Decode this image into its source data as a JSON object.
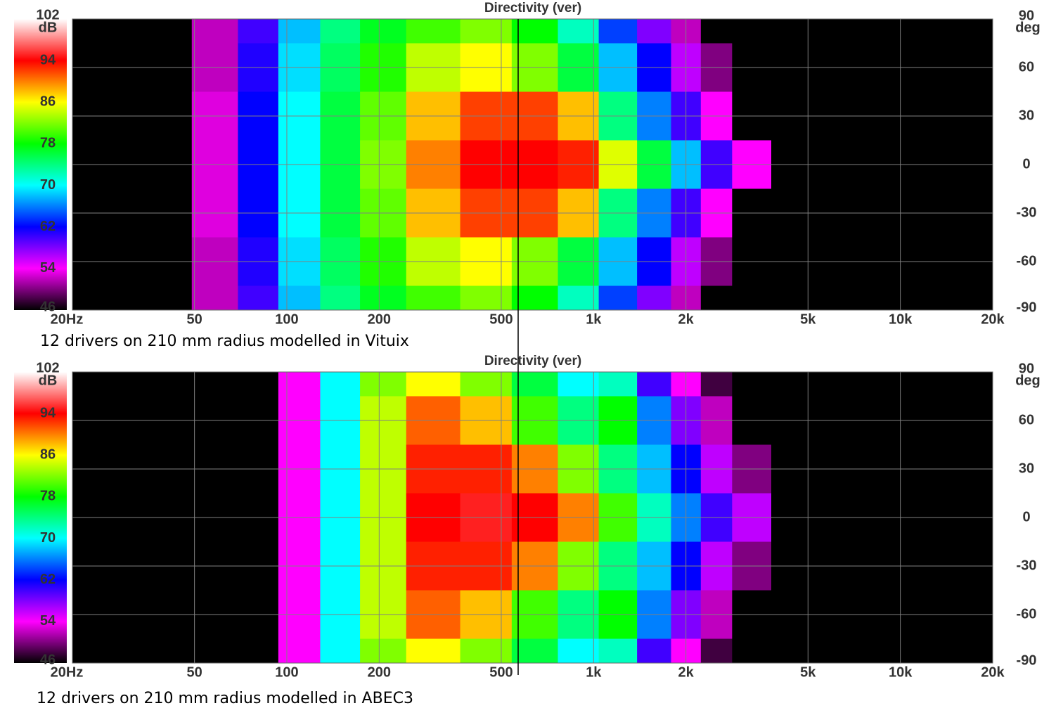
{
  "chart_data": [
    {
      "type": "heatmap",
      "title": "Directivity (ver)",
      "caption": "12 drivers on 210 mm radius modelled in Vituix",
      "x": [
        25,
        40,
        60,
        80,
        110,
        150,
        200,
        300,
        450,
        650,
        900,
        1200,
        1600,
        2000,
        2500,
        3200,
        4500,
        8000,
        15000
      ],
      "y": [
        90,
        60,
        30,
        0,
        -30,
        -60,
        -90
      ],
      "values": [
        [
          40,
          40,
          52,
          60,
          68,
          74,
          77,
          80,
          82,
          78,
          72,
          64,
          58,
          52,
          40,
          40,
          40,
          40,
          40
        ],
        [
          40,
          40,
          52,
          61,
          69,
          75,
          79,
          84,
          86,
          82,
          76,
          68,
          62,
          56,
          50,
          40,
          40,
          40,
          40
        ],
        [
          40,
          40,
          53,
          62,
          70,
          76,
          81,
          88,
          92,
          92,
          88,
          74,
          66,
          60,
          54,
          40,
          40,
          40,
          40
        ],
        [
          40,
          40,
          53,
          62,
          70,
          76,
          82,
          90,
          94,
          94,
          93,
          85,
          76,
          68,
          60,
          54,
          40,
          40,
          40
        ],
        [
          40,
          40,
          53,
          62,
          70,
          76,
          81,
          88,
          92,
          92,
          88,
          74,
          66,
          60,
          54,
          40,
          40,
          40,
          40
        ],
        [
          40,
          40,
          52,
          61,
          69,
          75,
          79,
          84,
          86,
          82,
          76,
          68,
          62,
          56,
          50,
          40,
          40,
          40,
          40
        ],
        [
          40,
          40,
          52,
          60,
          68,
          74,
          77,
          80,
          82,
          78,
          72,
          64,
          58,
          52,
          40,
          40,
          40,
          40,
          40
        ]
      ],
      "xlim": [
        20,
        20000
      ],
      "log_x": true,
      "xticks": [
        {
          "value": 20,
          "label": "20Hz"
        },
        50,
        100,
        200,
        500,
        {
          "value": 1000,
          "label": "1k"
        },
        {
          "value": 2000,
          "label": "2k"
        },
        {
          "value": 5000,
          "label": "5k"
        },
        {
          "value": 10000,
          "label": "10k"
        },
        {
          "value": 20000,
          "label": "20k"
        }
      ],
      "ylim": [
        -90,
        90
      ],
      "yticks": [
        90,
        60,
        30,
        0,
        -30,
        -60,
        -90
      ],
      "ylabel": "deg",
      "clim": [
        46,
        102
      ],
      "cticks": [
        102,
        94,
        86,
        78,
        70,
        62,
        54,
        46
      ],
      "clabel": "dB",
      "colors": [
        "#000000",
        "#ff00ff",
        "#0000ff",
        "#00ffff",
        "#00ff00",
        "#ffff00",
        "#ff0000",
        "#ffffff"
      ],
      "grid": true
    },
    {
      "type": "heatmap",
      "title": "Directivity (ver)",
      "caption": "12 drivers on 210 mm radius modelled in ABEC3",
      "x": [
        25,
        40,
        60,
        80,
        110,
        150,
        200,
        300,
        450,
        650,
        900,
        1200,
        1600,
        2000,
        2500,
        3200,
        4500,
        8000,
        15000
      ],
      "y": [
        90,
        60,
        30,
        0,
        -30,
        -60,
        -90
      ],
      "values": [
        [
          40,
          40,
          40,
          40,
          54,
          70,
          82,
          86,
          82,
          76,
          70,
          72,
          60,
          54,
          48,
          40,
          40,
          40,
          40
        ],
        [
          40,
          40,
          40,
          40,
          54,
          70,
          84,
          91,
          88,
          80,
          74,
          78,
          66,
          58,
          52,
          40,
          40,
          40,
          40
        ],
        [
          40,
          40,
          40,
          40,
          54,
          70,
          84,
          93,
          93,
          90,
          82,
          74,
          68,
          62,
          56,
          50,
          40,
          40,
          40
        ],
        [
          40,
          40,
          40,
          40,
          54,
          70,
          84,
          94,
          95,
          94,
          90,
          80,
          72,
          66,
          60,
          56,
          40,
          40,
          40
        ],
        [
          40,
          40,
          40,
          40,
          54,
          70,
          84,
          93,
          93,
          90,
          82,
          74,
          68,
          62,
          56,
          50,
          40,
          40,
          40
        ],
        [
          40,
          40,
          40,
          40,
          54,
          70,
          84,
          91,
          88,
          80,
          74,
          78,
          66,
          58,
          52,
          40,
          40,
          40,
          40
        ],
        [
          40,
          40,
          40,
          40,
          54,
          70,
          82,
          86,
          82,
          76,
          70,
          72,
          60,
          54,
          48,
          40,
          40,
          40,
          40
        ]
      ],
      "xlim": [
        20,
        20000
      ],
      "log_x": true,
      "xticks": [
        {
          "value": 20,
          "label": "20Hz"
        },
        50,
        100,
        200,
        500,
        {
          "value": 1000,
          "label": "1k"
        },
        {
          "value": 2000,
          "label": "2k"
        },
        {
          "value": 5000,
          "label": "5k"
        },
        {
          "value": 10000,
          "label": "10k"
        },
        {
          "value": 20000,
          "label": "20k"
        }
      ],
      "ylim": [
        -90,
        90
      ],
      "yticks": [
        90,
        60,
        30,
        0,
        -30,
        -60,
        -90
      ],
      "ylabel": "deg",
      "clim": [
        46,
        102
      ],
      "cticks": [
        102,
        94,
        86,
        78,
        70,
        62,
        54,
        46
      ],
      "clabel": "dB",
      "colors": [
        "#000000",
        "#ff00ff",
        "#0000ff",
        "#00ffff",
        "#00ff00",
        "#ffff00",
        "#ff0000",
        "#ffffff"
      ],
      "grid": true
    }
  ]
}
